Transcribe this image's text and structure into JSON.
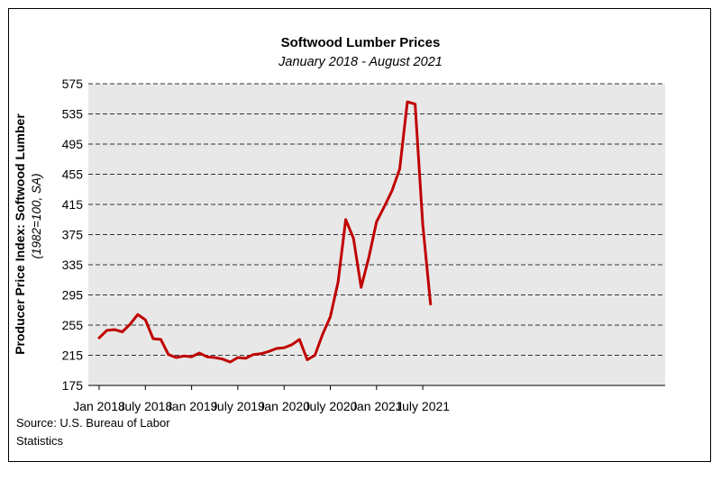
{
  "chart_data": {
    "type": "line",
    "title": "Softwood Lumber Prices",
    "subtitle": "January 2018 - August 2021",
    "ylabel": "Producer Price Index: Softwood Lumber",
    "ylabel_sub": "(1982=100, SA)",
    "xlabel": "",
    "ylim": [
      175,
      575
    ],
    "yticks": [
      175,
      215,
      255,
      295,
      335,
      375,
      415,
      455,
      495,
      535,
      575
    ],
    "x_tick_labels": [
      "Jan 2018",
      "July 2018",
      "Jan 2019",
      "July 2019",
      "Jan 2020",
      "July 2020",
      "Jan 2021",
      "July 2021"
    ],
    "x_tick_month_index": [
      0,
      6,
      12,
      18,
      24,
      30,
      36,
      42
    ],
    "grid": "horizontal dashed",
    "legend": "none",
    "series": [
      {
        "color": "#c00000",
        "x": [
          "2018-01",
          "2018-02",
          "2018-03",
          "2018-04",
          "2018-05",
          "2018-06",
          "2018-07",
          "2018-08",
          "2018-09",
          "2018-10",
          "2018-11",
          "2018-12",
          "2019-01",
          "2019-02",
          "2019-03",
          "2019-04",
          "2019-05",
          "2019-06",
          "2019-07",
          "2019-08",
          "2019-09",
          "2019-10",
          "2019-11",
          "2019-12",
          "2020-01",
          "2020-02",
          "2020-03",
          "2020-04",
          "2020-05",
          "2020-06",
          "2020-07",
          "2020-08",
          "2020-09",
          "2020-10",
          "2020-11",
          "2020-12",
          "2021-01",
          "2021-02",
          "2021-03",
          "2021-04",
          "2021-05",
          "2021-06",
          "2021-07",
          "2021-08"
        ],
        "values": [
          238,
          248,
          249,
          246,
          256,
          269,
          262,
          237,
          236,
          216,
          212,
          214,
          213,
          218,
          213,
          212,
          210,
          206,
          212,
          211,
          216,
          217,
          220,
          224,
          225,
          229,
          236,
          209,
          215,
          243,
          266,
          312,
          395,
          370,
          305,
          345,
          392,
          412,
          433,
          462,
          551,
          548,
          388,
          283
        ]
      }
    ]
  },
  "source": "Source: U.S. Bureau of Labor Statistics"
}
